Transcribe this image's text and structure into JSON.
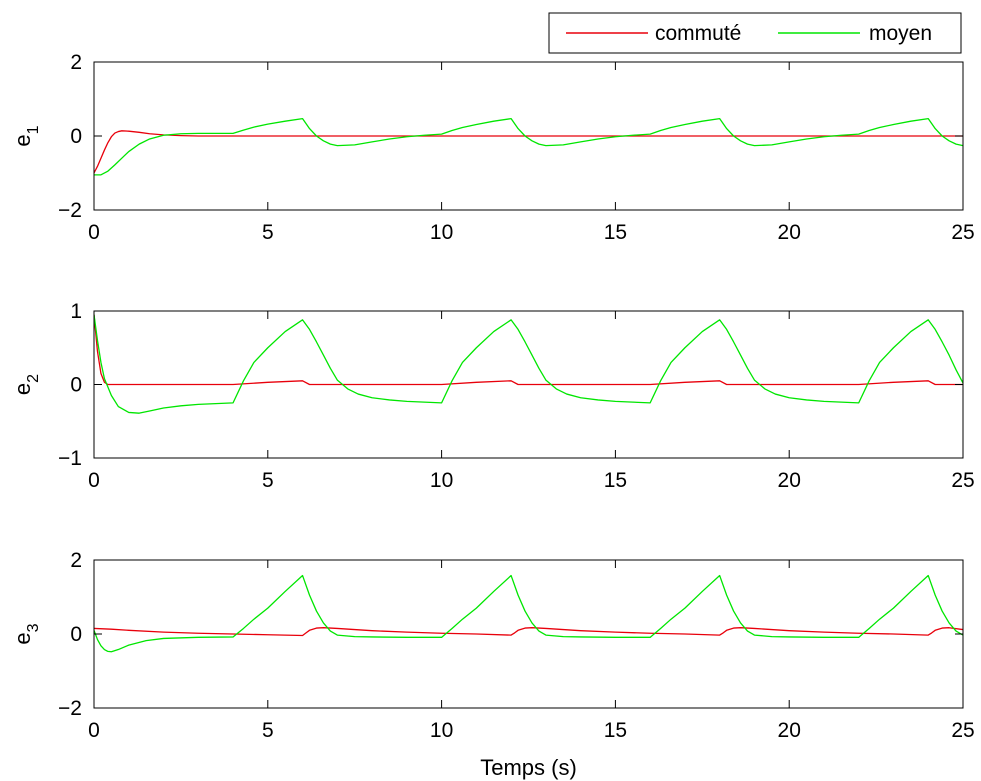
{
  "chart_data": [
    {
      "type": "line",
      "ylabel": "e",
      "ylabel_sub": "1",
      "xlim": [
        0,
        25
      ],
      "ylim": [
        -2,
        2
      ],
      "xticks": [
        0,
        5,
        10,
        15,
        20,
        25
      ],
      "yticks": [
        -2,
        0,
        2
      ],
      "series": [
        {
          "name": "commuté",
          "color": "#e8000b",
          "x": [
            0,
            0.1,
            0.2,
            0.3,
            0.4,
            0.5,
            0.6,
            0.7,
            0.8,
            1,
            1.3,
            1.6,
            2,
            2.5,
            3,
            3.5,
            4,
            6,
            7,
            10,
            12,
            13,
            16,
            18,
            19,
            22,
            24,
            25
          ],
          "y": [
            -1.0,
            -0.82,
            -0.6,
            -0.38,
            -0.18,
            -0.02,
            0.08,
            0.12,
            0.14,
            0.13,
            0.1,
            0.06,
            0.03,
            0.01,
            0,
            0,
            0,
            0,
            0,
            0,
            0,
            0,
            0,
            0,
            0,
            0,
            0,
            0
          ]
        },
        {
          "name": "moyen",
          "color": "#00e600",
          "x": [
            0,
            0.2,
            0.4,
            0.6,
            0.8,
            1,
            1.3,
            1.6,
            2,
            2.5,
            3,
            3.5,
            4,
            4.3,
            4.6,
            5,
            5.5,
            6,
            6.2,
            6.4,
            6.6,
            6.8,
            7,
            7.5,
            8,
            8.5,
            9,
            9.5,
            10,
            10.3,
            10.6,
            11,
            11.5,
            12,
            12.2,
            12.4,
            12.6,
            12.8,
            13,
            13.5,
            14,
            14.5,
            15,
            15.5,
            16,
            16.3,
            16.6,
            17,
            17.5,
            18,
            18.2,
            18.4,
            18.6,
            18.8,
            19,
            19.5,
            20,
            20.5,
            21,
            21.5,
            22,
            22.3,
            22.6,
            23,
            23.5,
            24,
            24.2,
            24.4,
            24.6,
            24.8,
            25
          ],
          "y": [
            -1.05,
            -1.05,
            -0.95,
            -0.78,
            -0.6,
            -0.42,
            -0.22,
            -0.08,
            0.02,
            0.06,
            0.07,
            0.07,
            0.07,
            0.16,
            0.24,
            0.32,
            0.4,
            0.47,
            0.2,
            0.0,
            -0.13,
            -0.22,
            -0.26,
            -0.24,
            -0.16,
            -0.08,
            -0.02,
            0.02,
            0.05,
            0.15,
            0.23,
            0.31,
            0.4,
            0.47,
            0.2,
            0.0,
            -0.13,
            -0.22,
            -0.26,
            -0.24,
            -0.16,
            -0.08,
            -0.02,
            0.02,
            0.05,
            0.15,
            0.23,
            0.31,
            0.4,
            0.47,
            0.2,
            0.0,
            -0.13,
            -0.22,
            -0.26,
            -0.24,
            -0.16,
            -0.08,
            -0.02,
            0.02,
            0.05,
            0.15,
            0.23,
            0.31,
            0.4,
            0.47,
            0.2,
            0.0,
            -0.13,
            -0.22,
            -0.26
          ]
        }
      ]
    },
    {
      "type": "line",
      "ylabel": "e",
      "ylabel_sub": "2",
      "xlim": [
        0,
        25
      ],
      "ylim": [
        -1,
        1
      ],
      "xticks": [
        0,
        5,
        10,
        15,
        20,
        25
      ],
      "yticks": [
        -1,
        0,
        1
      ],
      "series": [
        {
          "name": "commuté",
          "color": "#e8000b",
          "x": [
            0,
            0.05,
            0.1,
            0.2,
            0.3,
            0.4,
            0.6,
            4,
            5,
            6,
            6.2,
            10,
            11,
            12,
            12.2,
            16,
            17,
            18,
            18.2,
            22,
            23,
            24,
            24.2,
            25
          ],
          "y": [
            0.95,
            0.7,
            0.45,
            0.15,
            0.03,
            0.0,
            0.0,
            0.0,
            0.03,
            0.05,
            0.0,
            0.0,
            0.03,
            0.05,
            0.0,
            0.0,
            0.03,
            0.05,
            0.0,
            0.0,
            0.03,
            0.05,
            0.0,
            0.0
          ]
        },
        {
          "name": "moyen",
          "color": "#00e600",
          "x": [
            0,
            0.1,
            0.2,
            0.3,
            0.5,
            0.7,
            1,
            1.3,
            1.6,
            2,
            2.5,
            3,
            3.5,
            4,
            4.3,
            4.6,
            5,
            5.5,
            6,
            6.2,
            6.4,
            6.6,
            6.8,
            7,
            7.3,
            7.6,
            8,
            8.5,
            9,
            9.5,
            10,
            10.3,
            10.6,
            11,
            11.5,
            12,
            12.2,
            12.4,
            12.6,
            12.8,
            13,
            13.3,
            13.6,
            14,
            14.5,
            15,
            15.5,
            16,
            16.3,
            16.6,
            17,
            17.5,
            18,
            18.2,
            18.4,
            18.6,
            18.8,
            19,
            19.3,
            19.6,
            20,
            20.5,
            21,
            21.5,
            22,
            22.3,
            22.6,
            23,
            23.5,
            24,
            24.2,
            24.4,
            24.6,
            24.8,
            25
          ],
          "y": [
            0.95,
            0.6,
            0.3,
            0.08,
            -0.15,
            -0.3,
            -0.38,
            -0.39,
            -0.36,
            -0.32,
            -0.29,
            -0.27,
            -0.26,
            -0.25,
            0.05,
            0.3,
            0.5,
            0.72,
            0.88,
            0.75,
            0.58,
            0.4,
            0.22,
            0.06,
            -0.06,
            -0.13,
            -0.18,
            -0.21,
            -0.23,
            -0.24,
            -0.25,
            0.05,
            0.3,
            0.5,
            0.72,
            0.88,
            0.75,
            0.58,
            0.4,
            0.22,
            0.06,
            -0.06,
            -0.13,
            -0.18,
            -0.21,
            -0.23,
            -0.24,
            -0.25,
            0.05,
            0.3,
            0.5,
            0.72,
            0.88,
            0.75,
            0.58,
            0.4,
            0.22,
            0.06,
            -0.06,
            -0.13,
            -0.18,
            -0.21,
            -0.23,
            -0.24,
            -0.25,
            0.05,
            0.3,
            0.5,
            0.72,
            0.88,
            0.75,
            0.58,
            0.4,
            0.2,
            0.02
          ]
        }
      ]
    },
    {
      "type": "line",
      "ylabel": "e",
      "ylabel_sub": "3",
      "xlim": [
        0,
        25
      ],
      "ylim": [
        -2,
        2
      ],
      "xticks": [
        0,
        5,
        10,
        15,
        20,
        25
      ],
      "yticks": [
        -2,
        0,
        2
      ],
      "xlabel": "Temps (s)",
      "series": [
        {
          "name": "commuté",
          "color": "#e8000b",
          "x": [
            0,
            0.5,
            1,
            2,
            3,
            4,
            5,
            6,
            6.1,
            6.2,
            6.4,
            6.6,
            7,
            8,
            9,
            10,
            11,
            12,
            12.1,
            12.2,
            12.4,
            12.6,
            13,
            14,
            15,
            16,
            17,
            18,
            18.1,
            18.2,
            18.4,
            18.6,
            19,
            20,
            21,
            22,
            23,
            24,
            24.1,
            24.2,
            24.4,
            24.6,
            25
          ],
          "y": [
            0.15,
            0.13,
            0.1,
            0.05,
            0.02,
            0.0,
            -0.02,
            -0.04,
            0.03,
            0.1,
            0.16,
            0.17,
            0.15,
            0.09,
            0.05,
            0.02,
            0.0,
            -0.03,
            0.03,
            0.1,
            0.16,
            0.17,
            0.15,
            0.09,
            0.05,
            0.02,
            0.0,
            -0.03,
            0.03,
            0.1,
            0.16,
            0.17,
            0.15,
            0.09,
            0.05,
            0.02,
            0.0,
            -0.03,
            0.03,
            0.1,
            0.16,
            0.17,
            0.12
          ]
        },
        {
          "name": "moyen",
          "color": "#00e600",
          "x": [
            0,
            0.1,
            0.2,
            0.3,
            0.4,
            0.5,
            0.7,
            1,
            1.5,
            2,
            3,
            4,
            4.3,
            4.6,
            5,
            5.5,
            6,
            6.2,
            6.4,
            6.6,
            6.8,
            7,
            7.5,
            8,
            9,
            10,
            10.3,
            10.6,
            11,
            11.5,
            12,
            12.2,
            12.4,
            12.6,
            12.8,
            13,
            13.5,
            14,
            15,
            16,
            16.3,
            16.6,
            17,
            17.5,
            18,
            18.2,
            18.4,
            18.6,
            18.8,
            19,
            19.5,
            20,
            21,
            22,
            22.3,
            22.6,
            23,
            23.5,
            24,
            24.2,
            24.4,
            24.6,
            24.8,
            25
          ],
          "y": [
            0.1,
            -0.15,
            -0.32,
            -0.42,
            -0.47,
            -0.48,
            -0.42,
            -0.3,
            -0.18,
            -0.12,
            -0.09,
            -0.08,
            0.15,
            0.4,
            0.7,
            1.15,
            1.58,
            1.05,
            0.62,
            0.3,
            0.08,
            -0.03,
            -0.07,
            -0.08,
            -0.09,
            -0.09,
            0.15,
            0.4,
            0.7,
            1.15,
            1.58,
            1.05,
            0.62,
            0.3,
            0.08,
            -0.03,
            -0.07,
            -0.08,
            -0.09,
            -0.09,
            0.15,
            0.4,
            0.7,
            1.15,
            1.58,
            1.05,
            0.62,
            0.3,
            0.08,
            -0.03,
            -0.07,
            -0.08,
            -0.09,
            -0.09,
            0.15,
            0.4,
            0.7,
            1.15,
            1.58,
            1.05,
            0.62,
            0.3,
            0.08,
            -0.03
          ]
        }
      ]
    }
  ],
  "legend": {
    "placement": "top-right",
    "entries": [
      {
        "label": "commuté",
        "color": "#e8000b"
      },
      {
        "label": "moyen",
        "color": "#00e600"
      }
    ]
  }
}
